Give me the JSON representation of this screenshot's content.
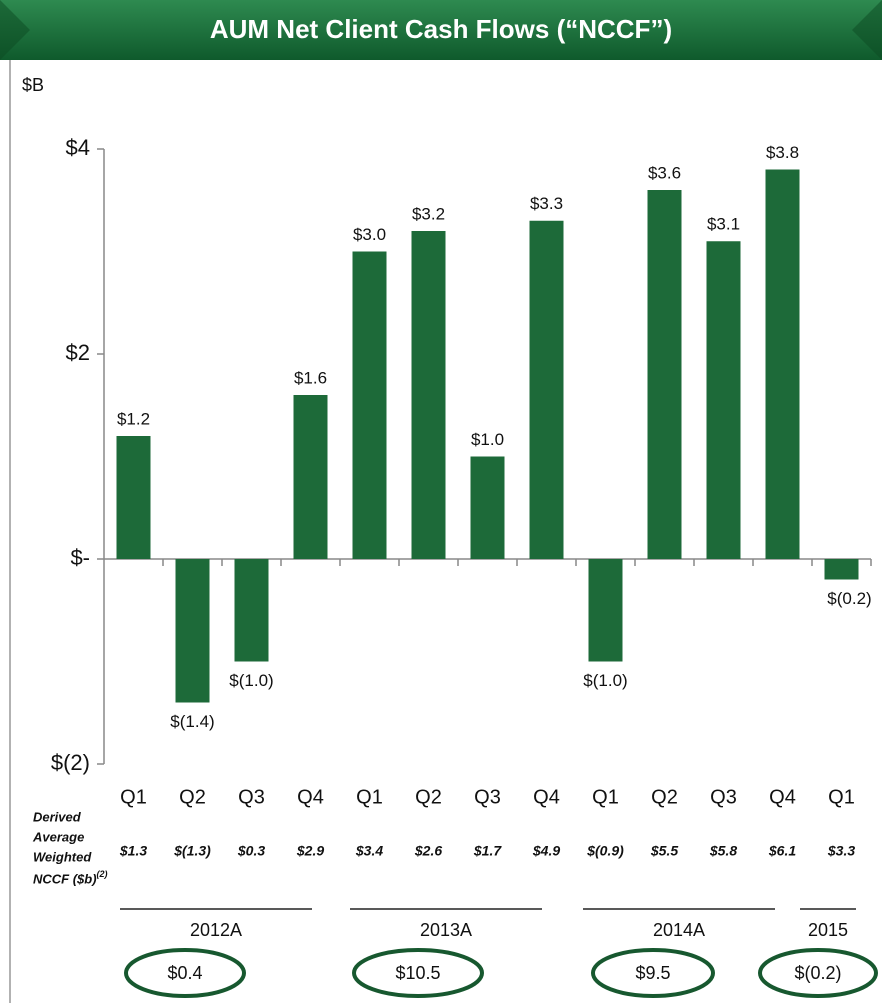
{
  "chart_data": {
    "type": "bar",
    "title": "AUM Net Client Cash Flows (“NCCF”)",
    "unit_label": "$B",
    "categories": [
      "Q1",
      "Q2",
      "Q3",
      "Q4",
      "Q1",
      "Q2",
      "Q3",
      "Q4",
      "Q1",
      "Q2",
      "Q3",
      "Q4",
      "Q1"
    ],
    "values": [
      1.2,
      -1.4,
      -1.0,
      1.6,
      3.0,
      3.2,
      1.0,
      3.3,
      -1.0,
      3.6,
      3.1,
      3.8,
      -0.2
    ],
    "value_labels": [
      "$1.2",
      "$(1.4)",
      "$(1.0)",
      "$1.6",
      "$3.0",
      "$3.2",
      "$1.0",
      "$3.3",
      "$(1.0)",
      "$3.6",
      "$3.1",
      "$3.8",
      "$(0.2)"
    ],
    "color": "#1d6a39",
    "ylim": [
      -2,
      4
    ],
    "yticks": [
      {
        "value": 4,
        "label": "$4"
      },
      {
        "value": 2,
        "label": "$2"
      },
      {
        "value": 0,
        "label": "$-"
      },
      {
        "value": -2,
        "label": "$(2)"
      }
    ],
    "derived": {
      "label": "Derived Average Weighted NCCF ($b)",
      "footnote": "(2)",
      "values": [
        "$1.3",
        "$(1.3)",
        "$0.3",
        "$2.9",
        "$3.4",
        "$2.6",
        "$1.7",
        "$4.9",
        "$(0.9)",
        "$5.5",
        "$5.8",
        "$6.1",
        "$3.3"
      ]
    },
    "groups": [
      {
        "label": "2012A",
        "total": "$0.4"
      },
      {
        "label": "2013A",
        "total": "$10.5"
      },
      {
        "label": "2014A",
        "total": "$9.5"
      },
      {
        "label": "2015",
        "total": "$(0.2)"
      }
    ]
  }
}
